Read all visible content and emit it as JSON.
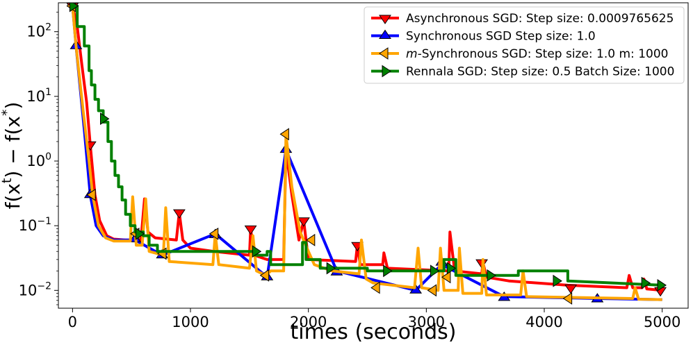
{
  "chart_data": {
    "type": "line",
    "title": "",
    "xlabel": "times (seconds)",
    "ylabel_parts": [
      "f(x",
      "t",
      ") − f(x",
      "*",
      ")"
    ],
    "yscale": "log",
    "xlim": [
      -120,
      5220
    ],
    "ylim": [
      0.0053,
      280
    ],
    "x_ticks": [
      0,
      1000,
      2000,
      3000,
      4000,
      5000
    ],
    "x_tick_labels": [
      "0",
      "1000",
      "2000",
      "3000",
      "4000",
      "5000"
    ],
    "y_ticks": [
      0.01,
      0.1,
      1,
      10,
      100
    ],
    "y_tick_labels": [
      {
        "base": "10",
        "exp": "−2"
      },
      {
        "base": "10",
        "exp": "−1"
      },
      {
        "base": "10",
        "exp": "0"
      },
      {
        "base": "10",
        "exp": "1"
      },
      {
        "base": "10",
        "exp": "2"
      }
    ],
    "legend_position": "top-right",
    "series": [
      {
        "name": "Asynchronous SGD: Step size: 0.0009765625",
        "legend_parts": [
          "Asynchronous SGD: Step size: 0.0009765625"
        ],
        "color": "#ff0000",
        "marker": "triangle-down",
        "points": [
          [
            0,
            250
          ],
          [
            40,
            120
          ],
          [
            80,
            30
          ],
          [
            120,
            8
          ],
          [
            150,
            1.8
          ],
          [
            190,
            0.3
          ],
          [
            230,
            0.12
          ],
          [
            290,
            0.07
          ],
          [
            350,
            0.062
          ],
          [
            450,
            0.06
          ],
          [
            580,
            0.06
          ],
          [
            610,
            0.26
          ],
          [
            640,
            0.08
          ],
          [
            700,
            0.065
          ],
          [
            880,
            0.06
          ],
          [
            905,
            0.16
          ],
          [
            935,
            0.06
          ],
          [
            1000,
            0.045
          ],
          [
            1200,
            0.04
          ],
          [
            1500,
            0.035
          ],
          [
            1510,
            0.09
          ],
          [
            1540,
            0.035
          ],
          [
            1650,
            0.03
          ],
          [
            1790,
            0.03
          ],
          [
            1810,
            1.5
          ],
          [
            1860,
            0.3
          ],
          [
            1920,
            0.06
          ],
          [
            1960,
            0.12
          ],
          [
            2000,
            0.03
          ],
          [
            2400,
            0.028
          ],
          [
            2415,
            0.05
          ],
          [
            2440,
            0.025
          ],
          [
            2630,
            0.025
          ],
          [
            2640,
            0.038
          ],
          [
            2670,
            0.022
          ],
          [
            3190,
            0.02
          ],
          [
            3200,
            0.08
          ],
          [
            3240,
            0.02
          ],
          [
            3470,
            0.018
          ],
          [
            3480,
            0.027
          ],
          [
            3510,
            0.016
          ],
          [
            3700,
            0.014
          ],
          [
            4200,
            0.012
          ],
          [
            4700,
            0.011
          ],
          [
            4720,
            0.017
          ],
          [
            4750,
            0.011
          ],
          [
            4830,
            0.011
          ],
          [
            4845,
            0.015
          ],
          [
            4870,
            0.0105
          ],
          [
            5000,
            0.01
          ]
        ],
        "marker_points": [
          [
            0,
            250
          ],
          [
            150,
            1.8
          ],
          [
            905,
            0.16
          ],
          [
            1510,
            0.09
          ],
          [
            1960,
            0.12
          ],
          [
            2415,
            0.05
          ],
          [
            3470,
            0.027
          ],
          [
            4225,
            0.011
          ],
          [
            4985,
            0.01
          ]
        ]
      },
      {
        "name": "Synchronous SGD Step size: 1.0",
        "legend_parts": [
          "Synchronous SGD Step size: 1.0"
        ],
        "color": "#0000ff",
        "marker": "triangle-up",
        "points": [
          [
            0,
            250
          ],
          [
            30,
            60
          ],
          [
            100,
            3
          ],
          [
            150,
            0.3
          ],
          [
            200,
            0.1
          ],
          [
            260,
            0.07
          ],
          [
            350,
            0.06
          ],
          [
            530,
            0.06
          ],
          [
            760,
            0.035
          ],
          [
            1210,
            0.075
          ],
          [
            1650,
            0.016
          ],
          [
            1810,
            1.5
          ],
          [
            2240,
            0.02
          ],
          [
            2910,
            0.01
          ],
          [
            3130,
            0.025
          ],
          [
            3660,
            0.008
          ],
          [
            4450,
            0.0075
          ],
          [
            5000,
            0.0072
          ]
        ],
        "marker_points": [
          [
            30,
            60
          ],
          [
            150,
            0.3
          ],
          [
            530,
            0.062
          ],
          [
            760,
            0.035
          ],
          [
            1210,
            0.072
          ],
          [
            1650,
            0.016
          ],
          [
            1810,
            1.5
          ],
          [
            2240,
            0.019
          ],
          [
            2910,
            0.01
          ],
          [
            3130,
            0.027
          ],
          [
            3660,
            0.0077
          ],
          [
            4450,
            0.0073
          ]
        ]
      },
      {
        "name": "m-Synchronous SGD: Step size: 1.0 m: 1000",
        "legend_parts": [
          "m",
          "-Synchronous  SGD: Step size: 1.0 m: 1000"
        ],
        "color": "#ffa500",
        "marker": "triangle-left",
        "points": [
          [
            0,
            250
          ],
          [
            30,
            60
          ],
          [
            90,
            6
          ],
          [
            140,
            1
          ],
          [
            170,
            0.3
          ],
          [
            220,
            0.1
          ],
          [
            280,
            0.065
          ],
          [
            350,
            0.058
          ],
          [
            490,
            0.058
          ],
          [
            510,
            0.28
          ],
          [
            540,
            0.05
          ],
          [
            590,
            0.05
          ],
          [
            620,
            0.26
          ],
          [
            650,
            0.04
          ],
          [
            770,
            0.035
          ],
          [
            790,
            0.19
          ],
          [
            820,
            0.028
          ],
          [
            1190,
            0.025
          ],
          [
            1210,
            0.075
          ],
          [
            1240,
            0.025
          ],
          [
            1500,
            0.022
          ],
          [
            1530,
            0.07
          ],
          [
            1560,
            0.02
          ],
          [
            1640,
            0.017
          ],
          [
            1680,
            0.02
          ],
          [
            1790,
            0.02
          ],
          [
            1810,
            2.6
          ],
          [
            1860,
            0.4
          ],
          [
            1930,
            0.08
          ],
          [
            2000,
            0.04
          ],
          [
            2050,
            0.025
          ],
          [
            2200,
            0.02
          ],
          [
            2430,
            0.018
          ],
          [
            2450,
            0.06
          ],
          [
            2490,
            0.015
          ],
          [
            2550,
            0.013
          ],
          [
            2900,
            0.011
          ],
          [
            2930,
            0.045
          ],
          [
            2960,
            0.011
          ],
          [
            3100,
            0.01
          ],
          [
            3120,
            0.045
          ],
          [
            3150,
            0.01
          ],
          [
            3270,
            0.01
          ],
          [
            3280,
            0.045
          ],
          [
            3310,
            0.009
          ],
          [
            3470,
            0.009
          ],
          [
            3480,
            0.03
          ],
          [
            3510,
            0.0085
          ],
          [
            3800,
            0.0085
          ],
          [
            3820,
            0.02
          ],
          [
            3850,
            0.008
          ],
          [
            4200,
            0.0078
          ],
          [
            4750,
            0.0075
          ],
          [
            4770,
            0.011
          ],
          [
            4800,
            0.0073
          ],
          [
            5000,
            0.0072
          ]
        ],
        "marker_points": [
          [
            0,
            250
          ],
          [
            170,
            0.3
          ],
          [
            540,
            0.075
          ],
          [
            770,
            0.037
          ],
          [
            1210,
            0.075
          ],
          [
            1640,
            0.017
          ],
          [
            1810,
            2.6
          ],
          [
            2030,
            0.06
          ],
          [
            2580,
            0.011
          ],
          [
            3060,
            0.01
          ],
          [
            3180,
            0.016
          ],
          [
            4210,
            0.0075
          ]
        ]
      },
      {
        "name": "Rennala SGD: Step size: 0.5 Batch Size: 1000",
        "legend_parts": [
          "Rennala SGD: Step size: 0.5 Batch Size: 1000"
        ],
        "color": "#008000",
        "marker": "triangle-right",
        "points": [
          [
            0,
            250
          ],
          [
            40,
            250
          ],
          [
            40,
            120
          ],
          [
            100,
            120
          ],
          [
            100,
            60
          ],
          [
            140,
            60
          ],
          [
            140,
            25
          ],
          [
            160,
            25
          ],
          [
            160,
            15
          ],
          [
            190,
            15
          ],
          [
            190,
            9
          ],
          [
            220,
            9
          ],
          [
            220,
            6
          ],
          [
            260,
            6
          ],
          [
            260,
            4
          ],
          [
            300,
            4
          ],
          [
            300,
            2
          ],
          [
            330,
            2
          ],
          [
            330,
            1
          ],
          [
            360,
            1
          ],
          [
            360,
            0.6
          ],
          [
            390,
            0.6
          ],
          [
            390,
            0.4
          ],
          [
            420,
            0.4
          ],
          [
            420,
            0.25
          ],
          [
            450,
            0.25
          ],
          [
            450,
            0.15
          ],
          [
            490,
            0.15
          ],
          [
            490,
            0.1
          ],
          [
            530,
            0.1
          ],
          [
            530,
            0.08
          ],
          [
            600,
            0.08
          ],
          [
            600,
            0.07
          ],
          [
            650,
            0.07
          ],
          [
            650,
            0.05
          ],
          [
            720,
            0.05
          ],
          [
            720,
            0.04
          ],
          [
            1550,
            0.04
          ],
          [
            1550,
            0.035
          ],
          [
            1650,
            0.035
          ],
          [
            1650,
            0.04
          ],
          [
            1680,
            0.04
          ],
          [
            1680,
            0.025
          ],
          [
            1950,
            0.025
          ],
          [
            1950,
            0.055
          ],
          [
            1980,
            0.055
          ],
          [
            1980,
            0.03
          ],
          [
            2100,
            0.03
          ],
          [
            2100,
            0.022
          ],
          [
            2500,
            0.022
          ],
          [
            2500,
            0.02
          ],
          [
            3150,
            0.02
          ],
          [
            3150,
            0.03
          ],
          [
            3250,
            0.03
          ],
          [
            3250,
            0.017
          ],
          [
            3780,
            0.017
          ],
          [
            3780,
            0.02
          ],
          [
            4200,
            0.02
          ],
          [
            4200,
            0.014
          ],
          [
            5000,
            0.012
          ]
        ],
        "marker_points": [
          [
            0,
            250
          ],
          [
            260,
            4.5
          ],
          [
            560,
            0.075
          ],
          [
            1550,
            0.04
          ],
          [
            2180,
            0.022
          ],
          [
            2660,
            0.02
          ],
          [
            3060,
            0.02
          ],
          [
            3200,
            0.022
          ],
          [
            3540,
            0.017
          ],
          [
            4100,
            0.014
          ],
          [
            4850,
            0.013
          ],
          [
            4985,
            0.012
          ]
        ]
      }
    ]
  }
}
